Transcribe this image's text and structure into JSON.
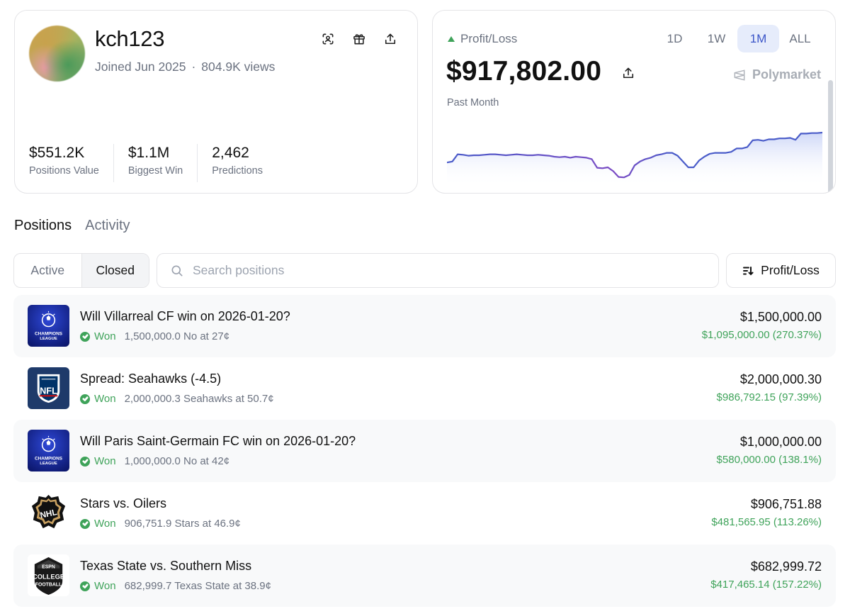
{
  "profile": {
    "username": "kch123",
    "joined": "Joined Jun 2025",
    "views": "804.9K views",
    "actions": [
      {
        "icon": "scan-face-icon"
      },
      {
        "icon": "gift-icon"
      },
      {
        "icon": "share-icon"
      }
    ],
    "stats": [
      {
        "value": "$551.2K",
        "label": "Positions Value"
      },
      {
        "value": "$1.1M",
        "label": "Biggest Win"
      },
      {
        "value": "2,462",
        "label": "Predictions"
      }
    ]
  },
  "pnl": {
    "title": "Profit/Loss",
    "value": "$917,802.00",
    "period": "Past Month",
    "brand": "Polymarket",
    "ranges": [
      "1D",
      "1W",
      "1M",
      "ALL"
    ],
    "active_range": "1M",
    "colors": {
      "line": "#4a5cc9",
      "line_alt": "#7b4bc4",
      "fill": "#dfe5fb",
      "up": "#3fa35a"
    },
    "chart_data": {
      "type": "area",
      "values": [
        0.62,
        0.6,
        0.45,
        0.46,
        0.48,
        0.47,
        0.47,
        0.46,
        0.45,
        0.45,
        0.46,
        0.47,
        0.46,
        0.45,
        0.46,
        0.47,
        0.47,
        0.46,
        0.47,
        0.48,
        0.5,
        0.51,
        0.5,
        0.52,
        0.5,
        0.51,
        0.52,
        0.55,
        0.73,
        0.74,
        0.72,
        0.8,
        0.92,
        0.93,
        0.88,
        0.68,
        0.6,
        0.55,
        0.52,
        0.47,
        0.45,
        0.42,
        0.42,
        0.48,
        0.6,
        0.72,
        0.72,
        0.58,
        0.5,
        0.44,
        0.42,
        0.42,
        0.42,
        0.4,
        0.33,
        0.33,
        0.3,
        0.16,
        0.15,
        0.17,
        0.14,
        0.14,
        0.12,
        0.12,
        0.11,
        0.15,
        0.02,
        0.02,
        0.01,
        0.01,
        0.0
      ],
      "grid": false
    }
  },
  "tabs": [
    "Positions",
    "Activity"
  ],
  "active_tab": "Positions",
  "filter": {
    "options": [
      "Active",
      "Closed"
    ],
    "active": "Closed"
  },
  "search": {
    "placeholder": "Search positions",
    "value": ""
  },
  "sort": {
    "label": "Profit/Loss",
    "icon": "sort-descending-icon"
  },
  "positions": [
    {
      "logo": "champions-league-logo",
      "title": "Will Villarreal CF win on 2026-01-20?",
      "status": "Won",
      "detail": "1,500,000.0 No at 27¢",
      "value": "$1,500,000.00",
      "pnl": "$1,095,000.00 (270.37%)"
    },
    {
      "logo": "nfl-logo",
      "title": "Spread: Seahawks (-4.5)",
      "status": "Won",
      "detail": "2,000,000.3 Seahawks at 50.7¢",
      "value": "$2,000,000.30",
      "pnl": "$986,792.15 (97.39%)"
    },
    {
      "logo": "champions-league-logo",
      "title": "Will Paris Saint-Germain FC win on 2026-01-20?",
      "status": "Won",
      "detail": "1,000,000.0 No at 42¢",
      "value": "$1,000,000.00",
      "pnl": "$580,000.00 (138.1%)"
    },
    {
      "logo": "nhl-logo",
      "title": "Stars vs. Oilers",
      "status": "Won",
      "detail": "906,751.9 Stars at 46.9¢",
      "value": "$906,751.88",
      "pnl": "$481,565.95 (113.26%)"
    },
    {
      "logo": "espn-college-football-logo",
      "title": "Texas State vs. Southern Miss",
      "status": "Won",
      "detail": "682,999.7 Texas State at 38.9¢",
      "value": "$682,999.72",
      "pnl": "$417,465.14 (157.22%)"
    }
  ]
}
